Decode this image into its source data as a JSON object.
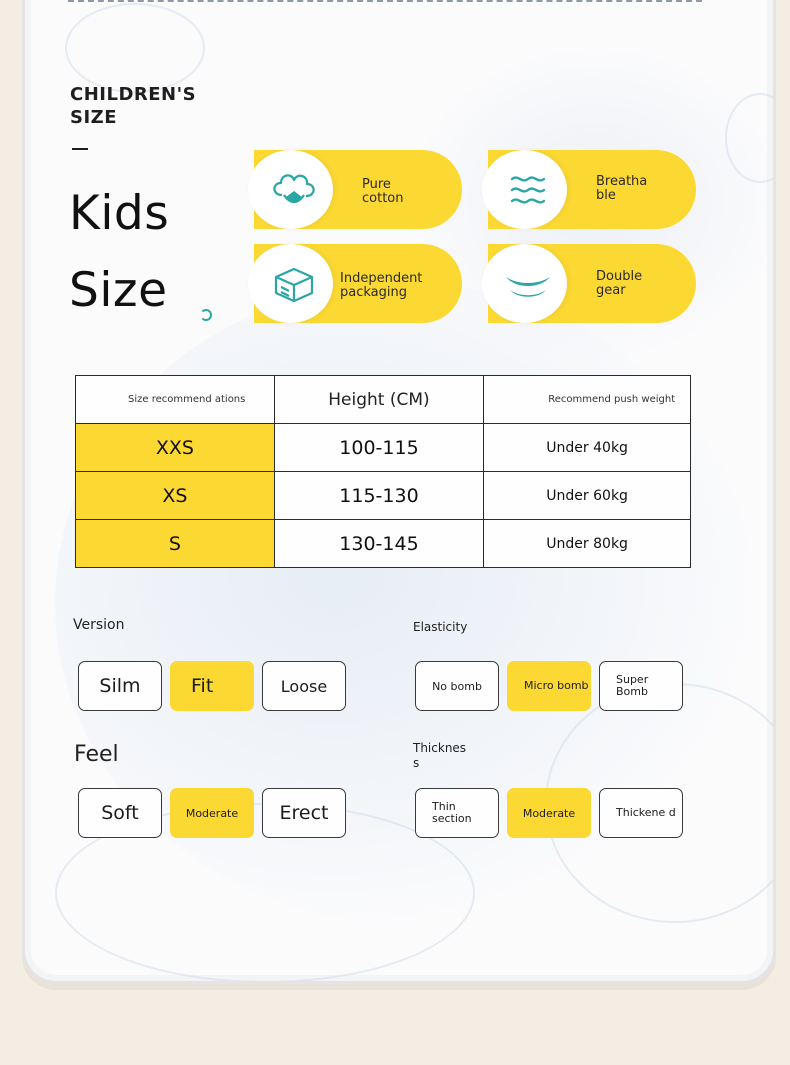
{
  "heading": "CHILDREN'S SIZE",
  "title_line1": "Kids",
  "title_line2": "Size",
  "features": [
    {
      "label": "Pure cotton",
      "icon": "cotton-flower-icon"
    },
    {
      "label": "Breatha ble",
      "icon": "breathable-waves-icon"
    },
    {
      "label": "Independent packaging",
      "icon": "package-box-icon"
    },
    {
      "label": "Double gear",
      "icon": "double-gear-icon"
    }
  ],
  "table": {
    "headers": [
      "Size recommend ations",
      "Height (CM)",
      "Recommend push weight"
    ],
    "rows": [
      {
        "size": "XXS",
        "height": "100-115",
        "weight": "Under 40kg"
      },
      {
        "size": "XS",
        "height": "115-130",
        "weight": "Under 60kg"
      },
      {
        "size": "S",
        "height": "130-145",
        "weight": "Under 80kg"
      }
    ]
  },
  "version": {
    "label": "Version",
    "options": [
      "Silm",
      "Fit",
      "Loose"
    ],
    "selected": "Fit"
  },
  "elasticity": {
    "label": "Elasticity",
    "options": [
      "No bomb",
      "Micro bomb",
      "Super Bomb"
    ],
    "selected": "Micro bomb"
  },
  "feel": {
    "label": "Feel",
    "options": [
      "Soft",
      "Moderate",
      "Erect"
    ],
    "selected": "Moderate"
  },
  "thickness": {
    "label": "Thicknes s",
    "options": [
      "Thin section",
      "Moderate",
      "Thickene d"
    ],
    "selected": "Moderate"
  },
  "colors": {
    "accent_yellow": "#fcd833",
    "icon_teal": "#2aa7a5"
  }
}
